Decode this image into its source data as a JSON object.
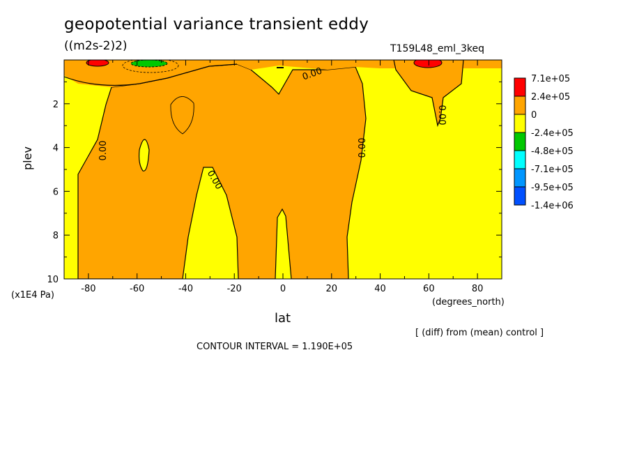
{
  "chart_data": {
    "type": "heatmap",
    "title": "geopotential variance transient eddy",
    "units": "((m2s-2)2)",
    "run_id": "T159L48_eml_3keq",
    "xlabel": "lat",
    "xunit": "(degrees_north)",
    "ylabel": "plev",
    "yunit": "(x1E4 Pa)",
    "xlim": [
      -90,
      90
    ],
    "ylim": [
      0,
      10
    ],
    "y_inverted": true,
    "xticks": [
      -80,
      -60,
      -40,
      -20,
      0,
      20,
      40,
      60,
      80
    ],
    "yticks": [
      2,
      4,
      6,
      8,
      10
    ],
    "contour_interval_label": "CONTOUR INTERVAL = 1.190E+05",
    "diff_label": "[ (diff) from (mean) control ]",
    "contour_labels": [
      "0.00",
      "0.00",
      "0.00",
      "0.00",
      "0.00"
    ],
    "colorbar": {
      "labels": [
        "7.1e+05",
        "2.4e+05",
        "0",
        "-2.4e+05",
        "-4.8e+05",
        "-7.1e+05",
        "-9.5e+05",
        "-1.4e+06"
      ],
      "colors": [
        "#ff0000",
        "#ffa500",
        "#ffff00",
        "#00c800",
        "#00ffff",
        "#0096ff",
        "#0050ff"
      ]
    },
    "regions": [
      {
        "level": "positive",
        "color": "#ffa500",
        "desc": "mid-latitude band"
      },
      {
        "level": "negative",
        "color": "#ffff00",
        "desc": "background"
      }
    ]
  }
}
